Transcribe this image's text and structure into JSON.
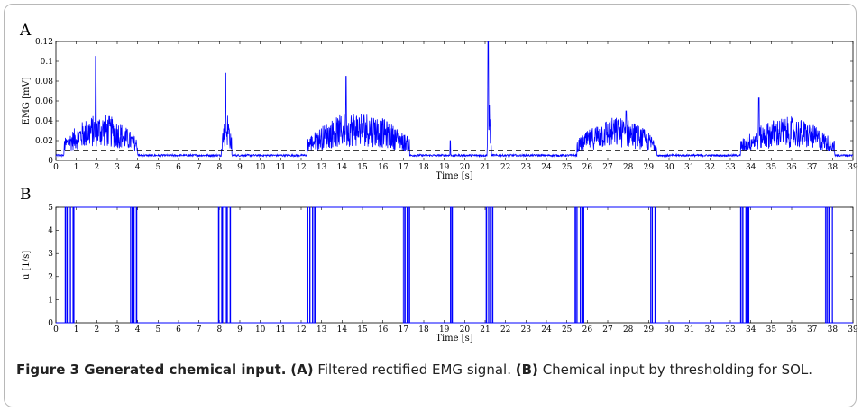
{
  "caption": {
    "figure_label": "Figure 3",
    "title": "Generated chemical input.",
    "part_a_tag": "(A)",
    "part_a_text": "Filtered rectified EMG signal.",
    "part_b_tag": "(B)",
    "part_b_text": "Chemical input by thresholding for SOL."
  },
  "chart_data": [
    {
      "panel": "A",
      "type": "line",
      "title": "",
      "xlabel": "Time [s]",
      "ylabel": "EMG  [mV]",
      "xlim": [
        0,
        39
      ],
      "ylim": [
        0,
        0.12
      ],
      "xticks": [
        0,
        1,
        2,
        3,
        4,
        5,
        6,
        7,
        8,
        9,
        10,
        11,
        12,
        13,
        14,
        15,
        16,
        17,
        18,
        19,
        20,
        21,
        22,
        23,
        24,
        25,
        26,
        27,
        28,
        29,
        30,
        31,
        32,
        33,
        34,
        35,
        36,
        37,
        38,
        39
      ],
      "yticks": [
        0,
        0.02,
        0.04,
        0.06,
        0.08,
        0.1,
        0.12
      ],
      "ytick_labels": [
        "0",
        "0.02",
        "0.04",
        "0.06",
        "0.08",
        "0.1",
        "0.12"
      ],
      "threshold": 0.01,
      "baseline": 0.005,
      "bursts": [
        {
          "start": 0.4,
          "end": 4.0,
          "level": 0.028,
          "peak_t": 1.95,
          "peak_v": 0.105
        },
        {
          "start": 8.1,
          "end": 8.6,
          "level": 0.03,
          "peak_t": 8.3,
          "peak_v": 0.088
        },
        {
          "start": 12.3,
          "end": 17.3,
          "level": 0.03,
          "peak_t": 14.2,
          "peak_v": 0.085
        },
        {
          "start": 21.1,
          "end": 21.3,
          "level": 0.035,
          "peak_t": 21.15,
          "peak_v": 0.12
        },
        {
          "start": 25.5,
          "end": 29.4,
          "level": 0.026,
          "peak_t": 27.9,
          "peak_v": 0.05
        },
        {
          "start": 33.5,
          "end": 38.1,
          "level": 0.026,
          "peak_t": 34.4,
          "peak_v": 0.063
        }
      ],
      "spikes": [
        {
          "t": 19.3,
          "v": 0.02
        }
      ],
      "colors": {
        "signal": "#0000ff",
        "threshold": "#000000"
      }
    },
    {
      "panel": "B",
      "type": "line",
      "title": "",
      "xlabel": "Time [s]",
      "ylabel": "u  [1/s]",
      "xlim": [
        0,
        39
      ],
      "ylim": [
        0,
        5
      ],
      "xticks": [
        0,
        1,
        2,
        3,
        4,
        5,
        6,
        7,
        8,
        9,
        10,
        11,
        12,
        13,
        14,
        15,
        16,
        17,
        18,
        19,
        20,
        21,
        22,
        23,
        24,
        25,
        26,
        27,
        28,
        29,
        30,
        31,
        32,
        33,
        34,
        35,
        36,
        37,
        38,
        39
      ],
      "yticks": [
        0,
        1,
        2,
        3,
        4,
        5
      ],
      "high_value": 5,
      "low_value": 0,
      "on_intervals": [
        [
          0.45,
          4.0
        ],
        [
          7.95,
          8.65
        ],
        [
          12.3,
          17.35
        ],
        [
          19.3,
          19.35
        ],
        [
          21.05,
          21.45
        ],
        [
          25.4,
          29.45
        ],
        [
          33.5,
          38.0
        ]
      ],
      "colors": {
        "signal": "#0000ff"
      }
    }
  ]
}
